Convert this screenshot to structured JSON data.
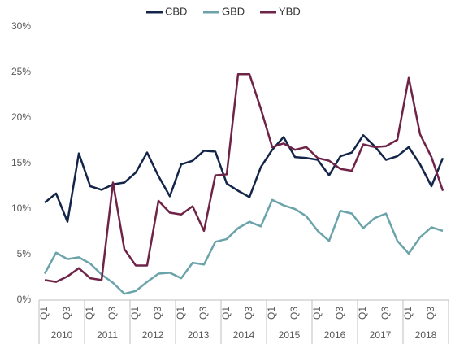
{
  "chart_data": {
    "type": "line",
    "categories": [
      "Q1",
      null,
      "Q3",
      null,
      "Q1",
      null,
      "Q3",
      null,
      "Q1",
      null,
      "Q3",
      null,
      "Q1",
      null,
      "Q3",
      null,
      "Q1",
      null,
      "Q3",
      null,
      "Q1",
      null,
      "Q3",
      null,
      "Q1",
      null,
      "Q3",
      null,
      "Q1",
      null,
      "Q3",
      null,
      "Q1",
      null,
      "Q3",
      null
    ],
    "groups": [
      "2010",
      "2011",
      "2012",
      "2013",
      "2014",
      "2015",
      "2016",
      "2017",
      "2018"
    ],
    "series": [
      {
        "name": "CBD",
        "color": "#14254a",
        "values": [
          10.7,
          11.7,
          8.6,
          16.1,
          12.5,
          12.1,
          12.7,
          12.9,
          14.0,
          16.2,
          13.6,
          11.4,
          14.9,
          15.3,
          16.4,
          16.3,
          12.8,
          12.0,
          11.3,
          14.6,
          16.5,
          17.9,
          15.7,
          15.6,
          15.4,
          13.7,
          15.8,
          16.2,
          18.1,
          16.9,
          15.4,
          15.8,
          16.8,
          14.9,
          12.5,
          15.6
        ]
      },
      {
        "name": "GBD",
        "color": "#6ba3aa",
        "values": [
          2.9,
          5.2,
          4.5,
          4.7,
          4.0,
          2.8,
          1.9,
          0.7,
          1.0,
          2.0,
          2.9,
          3.0,
          2.4,
          4.1,
          3.9,
          6.4,
          6.7,
          7.9,
          8.6,
          8.1,
          11.0,
          10.4,
          10.0,
          9.2,
          7.6,
          6.5,
          9.8,
          9.5,
          7.9,
          9.0,
          9.5,
          6.5,
          5.1,
          6.9,
          8.0,
          7.6
        ]
      },
      {
        "name": "YBD",
        "color": "#6e2347",
        "values": [
          2.2,
          2.0,
          2.6,
          3.5,
          2.4,
          2.2,
          12.9,
          5.6,
          3.8,
          3.8,
          10.9,
          9.6,
          9.4,
          10.3,
          7.6,
          13.7,
          13.8,
          24.8,
          24.8,
          21.0,
          16.8,
          17.2,
          16.5,
          16.8,
          15.6,
          15.3,
          14.4,
          14.2,
          17.1,
          16.8,
          16.9,
          17.6,
          24.4,
          18.2,
          15.7,
          12.0
        ]
      }
    ],
    "ylim": [
      0,
      30
    ],
    "yticks": [
      {
        "value": 0,
        "label": "0%"
      },
      {
        "value": 5,
        "label": "5%"
      },
      {
        "value": 10,
        "label": "10%"
      },
      {
        "value": 15,
        "label": "15%"
      },
      {
        "value": 20,
        "label": "20%"
      },
      {
        "value": 25,
        "label": "25%"
      },
      {
        "value": 30,
        "label": "30%"
      }
    ],
    "grid": false
  }
}
